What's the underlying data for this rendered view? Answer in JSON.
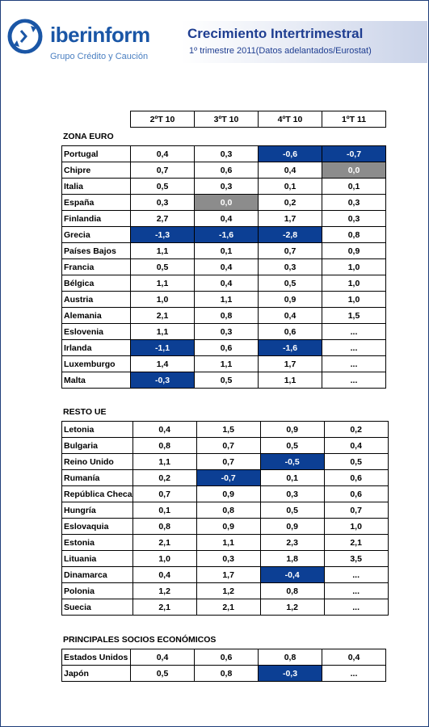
{
  "header": {
    "brand": "iberinform",
    "tagline": "Grupo Crédito y Caución",
    "title": "Crecimiento Intertrimestral",
    "subtitle": "1º trimestre 2011(Datos adelantados/Eurostat)"
  },
  "columns": [
    "2ºT 10",
    "3ºT 10",
    "4ºT 10",
    "1ºT 11"
  ],
  "colors": {
    "negative": "#0c3f94",
    "zero": "#8c8c8c",
    "title": "#1f3e91"
  },
  "sections": [
    {
      "title": "ZONA EURO",
      "rows": [
        {
          "name": "Portugal",
          "values": [
            "0,4",
            "0,3",
            "-0,6",
            "-0,7"
          ]
        },
        {
          "name": "Chipre",
          "values": [
            "0,7",
            "0,6",
            "0,4",
            "0,0"
          ]
        },
        {
          "name": "Italia",
          "values": [
            "0,5",
            "0,3",
            "0,1",
            "0,1"
          ]
        },
        {
          "name": "España",
          "values": [
            "0,3",
            "0,0",
            "0,2",
            "0,3"
          ]
        },
        {
          "name": "Finlandia",
          "values": [
            "2,7",
            "0,4",
            "1,7",
            "0,3"
          ]
        },
        {
          "name": "Grecia",
          "values": [
            "-1,3",
            "-1,6",
            "-2,8",
            "0,8"
          ]
        },
        {
          "name": "Países Bajos",
          "values": [
            "1,1",
            "0,1",
            "0,7",
            "0,9"
          ]
        },
        {
          "name": "Francia",
          "values": [
            "0,5",
            "0,4",
            "0,3",
            "1,0"
          ]
        },
        {
          "name": "Bélgica",
          "values": [
            "1,1",
            "0,4",
            "0,5",
            "1,0"
          ]
        },
        {
          "name": "Austria",
          "values": [
            "1,0",
            "1,1",
            "0,9",
            "1,0"
          ]
        },
        {
          "name": "Alemania",
          "values": [
            "2,1",
            "0,8",
            "0,4",
            "1,5"
          ]
        },
        {
          "name": "Eslovenia",
          "values": [
            "1,1",
            "0,3",
            "0,6",
            "..."
          ]
        },
        {
          "name": "Irlanda",
          "values": [
            "-1,1",
            "0,6",
            "-1,6",
            "..."
          ]
        },
        {
          "name": "Luxemburgo",
          "values": [
            "1,4",
            "1,1",
            "1,7",
            "..."
          ]
        },
        {
          "name": "Malta",
          "values": [
            "-0,3",
            "0,5",
            "1,1",
            "..."
          ]
        }
      ]
    },
    {
      "title": "RESTO UE",
      "rows": [
        {
          "name": "Letonia",
          "values": [
            "0,4",
            "1,5",
            "0,9",
            "0,2"
          ]
        },
        {
          "name": "Bulgaria",
          "values": [
            "0,8",
            "0,7",
            "0,5",
            "0,4"
          ]
        },
        {
          "name": "Reino Unido",
          "values": [
            "1,1",
            "0,7",
            "-0,5",
            "0,5"
          ]
        },
        {
          "name": "Rumanía",
          "values": [
            "0,2",
            "-0,7",
            "0,1",
            "0,6"
          ]
        },
        {
          "name": "República Checa",
          "values": [
            "0,7",
            "0,9",
            "0,3",
            "0,6"
          ]
        },
        {
          "name": "Hungría",
          "values": [
            "0,1",
            "0,8",
            "0,5",
            "0,7"
          ]
        },
        {
          "name": "Eslovaquia",
          "values": [
            "0,8",
            "0,9",
            "0,9",
            "1,0"
          ]
        },
        {
          "name": "Estonia",
          "values": [
            "2,1",
            "1,1",
            "2,3",
            "2,1"
          ]
        },
        {
          "name": "Lituania",
          "values": [
            "1,0",
            "0,3",
            "1,8",
            "3,5"
          ]
        },
        {
          "name": "Dinamarca",
          "values": [
            "0,4",
            "1,7",
            "-0,4",
            "..."
          ]
        },
        {
          "name": "Polonia",
          "values": [
            "1,2",
            "1,2",
            "0,8",
            "..."
          ]
        },
        {
          "name": "Suecia",
          "values": [
            "2,1",
            "2,1",
            "1,2",
            "..."
          ]
        }
      ]
    },
    {
      "title": "PRINCIPALES SOCIOS ECONÓMICOS",
      "rows": [
        {
          "name": "Estados Unidos",
          "values": [
            "0,4",
            "0,6",
            "0,8",
            "0,4"
          ]
        },
        {
          "name": "Japón",
          "values": [
            "0,5",
            "0,8",
            "-0,3",
            "..."
          ]
        }
      ]
    }
  ]
}
